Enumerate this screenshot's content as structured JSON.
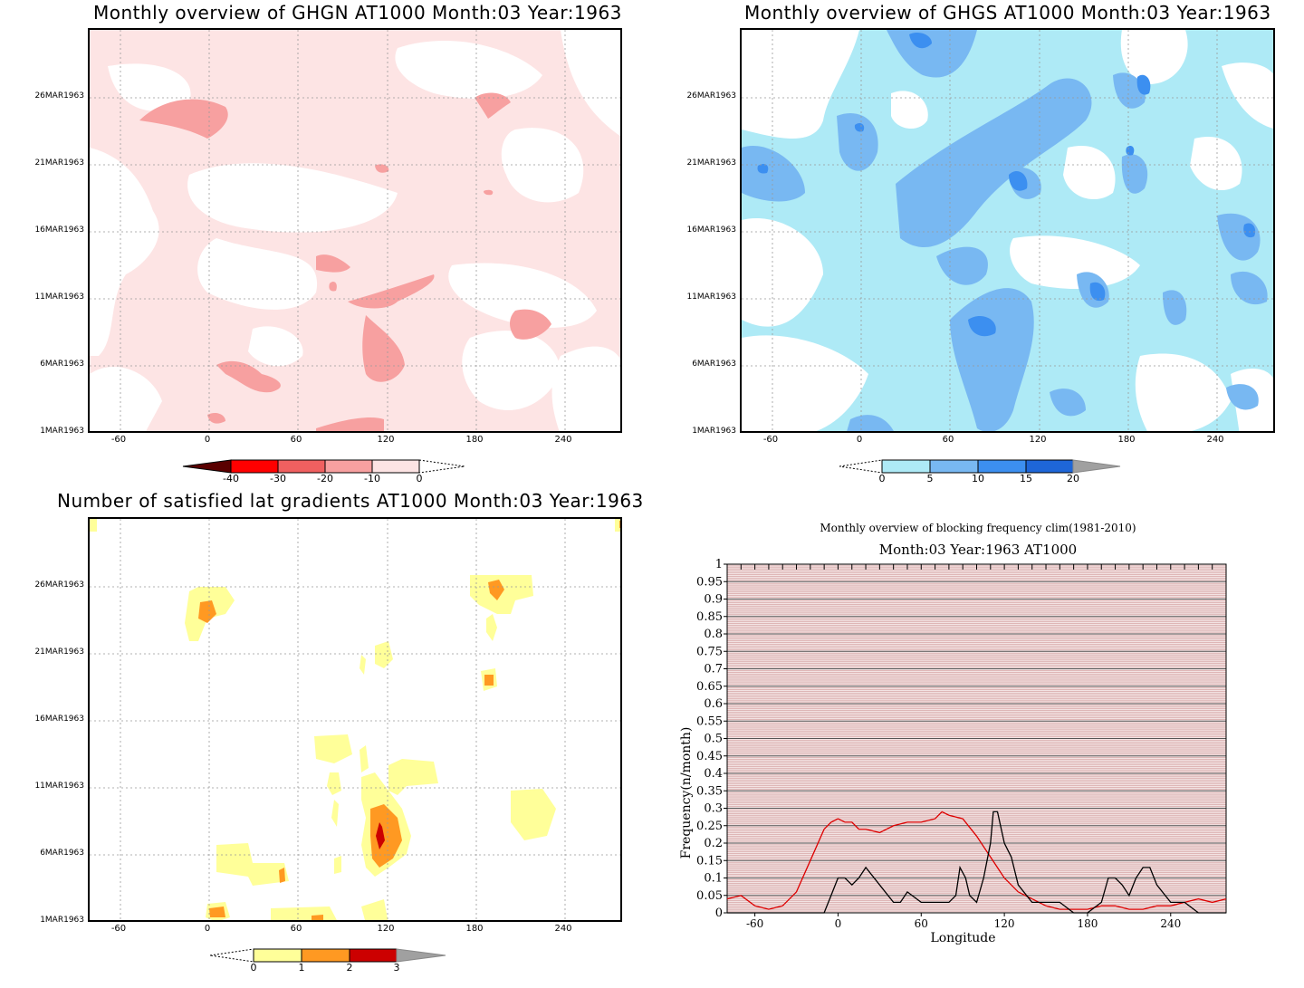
{
  "panels": {
    "ghgn": {
      "title": "Monthly overview of GHGN AT1000 Month:03 Year:1963",
      "yticks": [
        "26MAR1963",
        "21MAR1963",
        "16MAR1963",
        "11MAR1963",
        "6MAR1963",
        "1MAR1963"
      ],
      "xticks": [
        "-60",
        "0",
        "60",
        "120",
        "180",
        "240"
      ],
      "colorbar": {
        "labels": [
          "-40",
          "-30",
          "-20",
          "-10",
          "0"
        ],
        "colors": [
          "#5a0000",
          "#ff0000",
          "#f06060",
          "#f7a0a0",
          "#fde4e4"
        ]
      }
    },
    "ghgs": {
      "title": "Monthly overview of GHGS AT1000 Month:03 Year:1963",
      "yticks": [
        "26MAR1963",
        "21MAR1963",
        "16MAR1963",
        "11MAR1963",
        "6MAR1963",
        "1MAR1963"
      ],
      "xticks": [
        "-60",
        "0",
        "60",
        "120",
        "180",
        "240"
      ],
      "colorbar": {
        "labels": [
          "0",
          "5",
          "10",
          "15",
          "20"
        ],
        "colors": [
          "#aeeaf6",
          "#78b8f2",
          "#3c8ff0",
          "#1e66d8",
          "#a0a0a0"
        ]
      }
    },
    "gradients": {
      "title": "Number of satisfied lat gradients AT1000 Month:03 Year:1963",
      "yticks": [
        "26MAR1963",
        "21MAR1963",
        "16MAR1963",
        "11MAR1963",
        "6MAR1963",
        "1MAR1963"
      ],
      "xticks": [
        "-60",
        "0",
        "60",
        "120",
        "180",
        "240"
      ],
      "colorbar": {
        "labels": [
          "0",
          "1",
          "2",
          "3"
        ],
        "colors": [
          "#ffff99",
          "#ff9922",
          "#cc0000",
          "#a0a0a0"
        ]
      }
    },
    "blocking": {
      "title": "Monthly overview of blocking frequency clim(1981-2010)",
      "subtitle": "Month:03 Year:1963  AT1000"
    }
  },
  "chart_data": [
    {
      "type": "heatmap",
      "title": "Monthly overview of GHGN AT1000 Month:03 Year:1963",
      "x_ticks": [
        -60,
        0,
        60,
        120,
        180,
        240
      ],
      "y_ticks": [
        "1MAR1963",
        "6MAR1963",
        "11MAR1963",
        "16MAR1963",
        "21MAR1963",
        "26MAR1963"
      ],
      "xlim": [
        -70,
        270
      ],
      "levels": [
        -40,
        -30,
        -20,
        -10,
        0
      ]
    },
    {
      "type": "heatmap",
      "title": "Monthly overview of GHGS AT1000 Month:03 Year:1963",
      "x_ticks": [
        -60,
        0,
        60,
        120,
        180,
        240
      ],
      "y_ticks": [
        "1MAR1963",
        "6MAR1963",
        "11MAR1963",
        "16MAR1963",
        "21MAR1963",
        "26MAR1963"
      ],
      "xlim": [
        -70,
        270
      ],
      "levels": [
        0,
        5,
        10,
        15,
        20
      ]
    },
    {
      "type": "heatmap",
      "title": "Number of satisfied lat gradients AT1000 Month:03 Year:1963",
      "x_ticks": [
        -60,
        0,
        60,
        120,
        180,
        240
      ],
      "y_ticks": [
        "1MAR1963",
        "6MAR1963",
        "11MAR1963",
        "16MAR1963",
        "21MAR1963",
        "26MAR1963"
      ],
      "xlim": [
        -70,
        270
      ],
      "levels": [
        0,
        1,
        2,
        3
      ]
    },
    {
      "type": "line",
      "title": "Monthly overview of blocking frequency clim(1981-2010)",
      "subtitle": "Month:03 Year:1963  AT1000",
      "xlabel": "Longitude",
      "ylabel": "Frequency(n/month)",
      "xlim": [
        -80,
        280
      ],
      "ylim": [
        0,
        1
      ],
      "x_ticks": [
        -60,
        0,
        60,
        120,
        180,
        240
      ],
      "y_ticks": [
        "0",
        "0.05",
        "0.1",
        "0.15",
        "0.2",
        "0.25",
        "0.3",
        "0.35",
        "0.4",
        "0.45",
        "0.5",
        "0.55",
        "0.6",
        "0.65",
        "0.7",
        "0.75",
        "0.8",
        "0.85",
        "0.9",
        "0.95",
        "1"
      ],
      "series": [
        {
          "color": "#dd0000",
          "x": [
            -80,
            -70,
            -60,
            -50,
            -40,
            -30,
            -20,
            -10,
            -5,
            0,
            5,
            10,
            15,
            20,
            30,
            40,
            50,
            60,
            70,
            75,
            80,
            90,
            100,
            110,
            120,
            130,
            140,
            150,
            160,
            170,
            180,
            190,
            200,
            210,
            220,
            230,
            240,
            250,
            260,
            270,
            280
          ],
          "y": [
            0.04,
            0.05,
            0.02,
            0.01,
            0.02,
            0.06,
            0.15,
            0.24,
            0.26,
            0.27,
            0.26,
            0.26,
            0.24,
            0.24,
            0.23,
            0.25,
            0.26,
            0.26,
            0.27,
            0.29,
            0.28,
            0.27,
            0.22,
            0.16,
            0.1,
            0.06,
            0.04,
            0.02,
            0.01,
            0.01,
            0.01,
            0.02,
            0.02,
            0.01,
            0.01,
            0.02,
            0.02,
            0.03,
            0.04,
            0.03,
            0.04
          ]
        },
        {
          "color": "#000000",
          "x": [
            -80,
            -75,
            -70,
            -60,
            -50,
            -40,
            -30,
            -20,
            -15,
            -10,
            -5,
            0,
            5,
            10,
            15,
            20,
            30,
            40,
            42,
            45,
            50,
            60,
            70,
            80,
            85,
            88,
            92,
            95,
            100,
            105,
            110,
            112,
            115,
            120,
            125,
            130,
            140,
            150,
            160,
            170,
            180,
            190,
            195,
            200,
            205,
            210,
            215,
            220,
            225,
            230,
            240,
            250,
            260,
            270,
            275,
            280
          ],
          "y": [
            0.0,
            0.0,
            0.0,
            0.0,
            0.0,
            0.0,
            0.0,
            0.0,
            0.0,
            0.0,
            0.05,
            0.1,
            0.1,
            0.08,
            0.1,
            0.13,
            0.08,
            0.03,
            0.03,
            0.03,
            0.06,
            0.03,
            0.03,
            0.03,
            0.05,
            0.13,
            0.1,
            0.05,
            0.03,
            0.1,
            0.2,
            0.29,
            0.29,
            0.2,
            0.16,
            0.08,
            0.03,
            0.03,
            0.03,
            0.0,
            0.0,
            0.03,
            0.1,
            0.1,
            0.08,
            0.05,
            0.1,
            0.13,
            0.13,
            0.08,
            0.03,
            0.03,
            0.0,
            0.0,
            0.0,
            0.0
          ]
        }
      ]
    }
  ]
}
